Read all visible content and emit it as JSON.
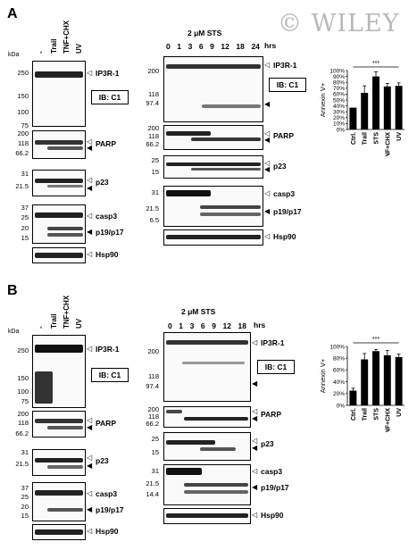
{
  "watermark": "© WILEY",
  "units": {
    "kda": "kDa",
    "hrs": "hrs",
    "ib": "IB: C1",
    "sts": "2 μM  STS"
  },
  "panels": {
    "a": "A",
    "b": "B"
  },
  "lanes": {
    "control": "-",
    "trail": "Trail",
    "tnf": "TNF+CHX",
    "uv": "UV"
  },
  "timepoints_a": [
    "0",
    "1",
    "3",
    "6",
    "9",
    "12",
    "18",
    "24"
  ],
  "timepoints_b": [
    "0",
    "1",
    "3",
    "6",
    "9",
    "12",
    "18"
  ],
  "proteins": {
    "ip3r1": "IP3R-1",
    "parp": "PARP",
    "p23": "p23",
    "casp3": "casp3",
    "p19p17": "p19/p17",
    "hsp90": "Hsp90"
  },
  "ladder": {
    "a_left": {
      "ip3r1": [
        "250",
        "150",
        "100",
        "75"
      ],
      "parp": [
        "200",
        "118",
        "66.2"
      ],
      "p23": [
        "31",
        "21.5"
      ],
      "casp3": [
        "37",
        "25",
        "20",
        "15"
      ]
    },
    "a_mid": {
      "ip3r1": [
        "200",
        "118",
        "97.4"
      ],
      "parp": [
        "200",
        "118",
        "66.2"
      ],
      "p23": [
        "25",
        "15"
      ],
      "casp3": [
        "31",
        "21.5",
        "6.5"
      ]
    },
    "b_left": {
      "ip3r1": [
        "250",
        "150",
        "100",
        "75"
      ],
      "parp": [
        "200",
        "118",
        "66.2"
      ],
      "p23": [
        "31",
        "21.5"
      ],
      "casp3": [
        "37",
        "25",
        "20",
        "15"
      ]
    },
    "b_mid": {
      "ip3r1": [
        "200",
        "118",
        "97.4"
      ],
      "parp": [
        "200",
        "118",
        "66.2"
      ],
      "p23": [
        "25",
        "15"
      ],
      "casp3": [
        "31",
        "21.5",
        "14.4"
      ]
    }
  },
  "chart_data": [
    {
      "type": "bar",
      "categories": [
        "Ctrl.",
        "Trail",
        "STS",
        "TNF+CHX",
        "UV"
      ],
      "values": [
        37,
        62,
        90,
        73,
        74
      ],
      "errors": [
        0,
        12,
        8,
        5,
        5
      ],
      "ylabel": "Annexin V+",
      "ylim": [
        0,
        100
      ],
      "yticks": [
        "0%",
        "10%",
        "20%",
        "30%",
        "40%",
        "50%",
        "60%",
        "70%",
        "80%",
        "90%",
        "100%"
      ],
      "significance": "***"
    },
    {
      "type": "bar",
      "categories": [
        "Ctrl.",
        "Trail",
        "STS",
        "TNF+CHX",
        "UV"
      ],
      "values": [
        25,
        78,
        92,
        85,
        82
      ],
      "errors": [
        4,
        10,
        3,
        8,
        5
      ],
      "ylabel": "Annexin V+",
      "ylim": [
        0,
        100
      ],
      "yticks": [
        "0%",
        "20%",
        "40%",
        "60%",
        "80%",
        "100%"
      ],
      "significance": "***"
    }
  ]
}
